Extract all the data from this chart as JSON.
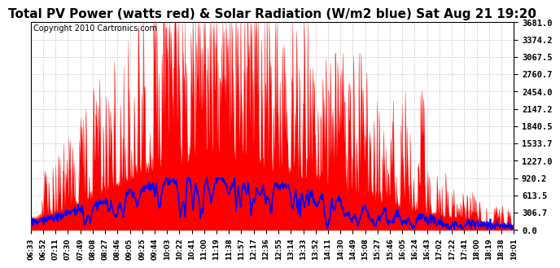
{
  "title": "Total PV Power (watts red) & Solar Radiation (W/m2 blue) Sat Aug 21 19:20",
  "copyright": "Copyright 2010 Cartronics.com",
  "yticks": [
    0.0,
    306.7,
    613.5,
    920.2,
    1227.0,
    1533.7,
    1840.5,
    2147.2,
    2454.0,
    2760.7,
    3067.5,
    3374.2,
    3681.0
  ],
  "ymax": 3681.0,
  "xtick_labels": [
    "06:33",
    "06:52",
    "07:11",
    "07:30",
    "07:49",
    "08:08",
    "08:27",
    "08:46",
    "09:05",
    "09:25",
    "09:44",
    "10:03",
    "10:22",
    "10:41",
    "11:00",
    "11:19",
    "11:38",
    "11:57",
    "12:17",
    "12:36",
    "12:55",
    "13:14",
    "13:33",
    "13:52",
    "14:11",
    "14:30",
    "14:49",
    "15:08",
    "15:27",
    "15:46",
    "16:05",
    "16:24",
    "16:43",
    "17:02",
    "17:22",
    "17:41",
    "18:00",
    "18:19",
    "18:38",
    "19:01"
  ],
  "bg_color": "#ffffff",
  "plot_bg_color": "#ffffff",
  "red_color": "#ff0000",
  "blue_color": "#0000ff",
  "grid_color": "#bbbbbb",
  "title_fontsize": 11,
  "copyright_fontsize": 7
}
